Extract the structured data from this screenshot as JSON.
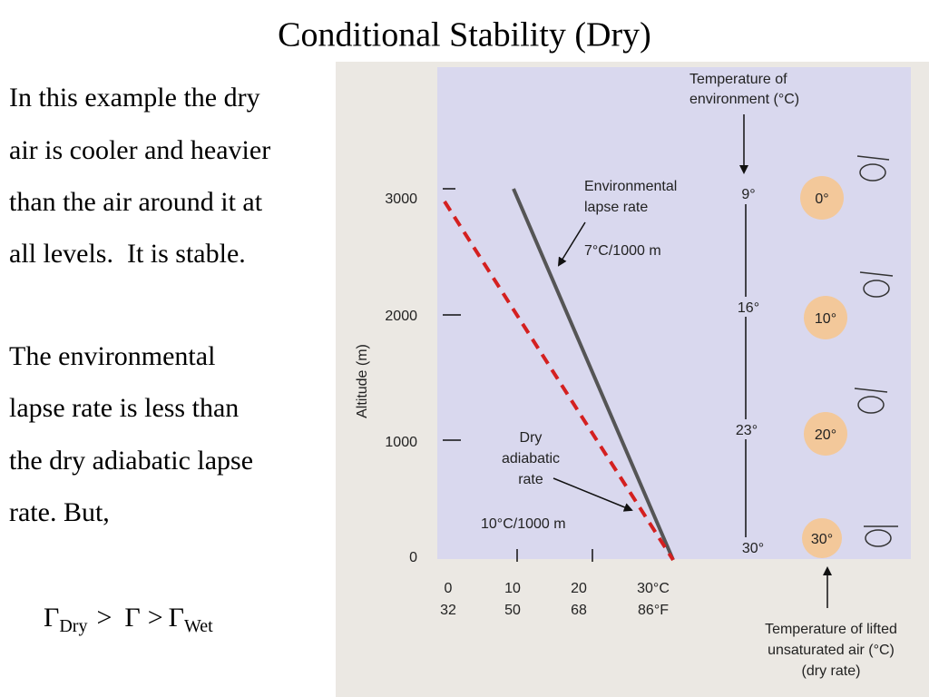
{
  "title": "Conditional Stability (Dry)",
  "body": {
    "paragraphs": [
      [
        "In this example the dry",
        "air is cooler and heavier",
        "than the air around it at",
        "all levels.  It is stable."
      ],
      [
        "The environmental",
        "lapse rate is less than",
        "the dry adiabatic lapse",
        "rate. But,"
      ]
    ],
    "formula": [
      "Γ",
      "Dry",
      ">",
      "Γ",
      ">",
      "Γ",
      "Wet"
    ]
  },
  "figure": {
    "y_axis_label": "Altitude (m)",
    "y_ticks": [
      "3000",
      "2000",
      "1000",
      "0"
    ],
    "x_ticks_celsius": [
      "0",
      "10",
      "20",
      "30°C"
    ],
    "x_ticks_fahrenheit": [
      "32",
      "50",
      "68",
      "86°F"
    ],
    "environmental_label": [
      "Environmental",
      "lapse rate"
    ],
    "environmental_rate": "7°C/1000 m",
    "dry_label": [
      "Dry",
      "adiabatic",
      "rate"
    ],
    "dry_rate": "10°C/1000 m",
    "environment_header": [
      "Temperature of",
      "environment (°C)"
    ],
    "environment_temps": [
      "9°",
      "16°",
      "23°",
      "30°"
    ],
    "parcel_temps": [
      "0°",
      "10°",
      "20°",
      "30°"
    ],
    "parcel_footer": [
      "Temperature of lifted",
      "unsaturated air (°C)",
      "(dry rate)"
    ]
  }
}
